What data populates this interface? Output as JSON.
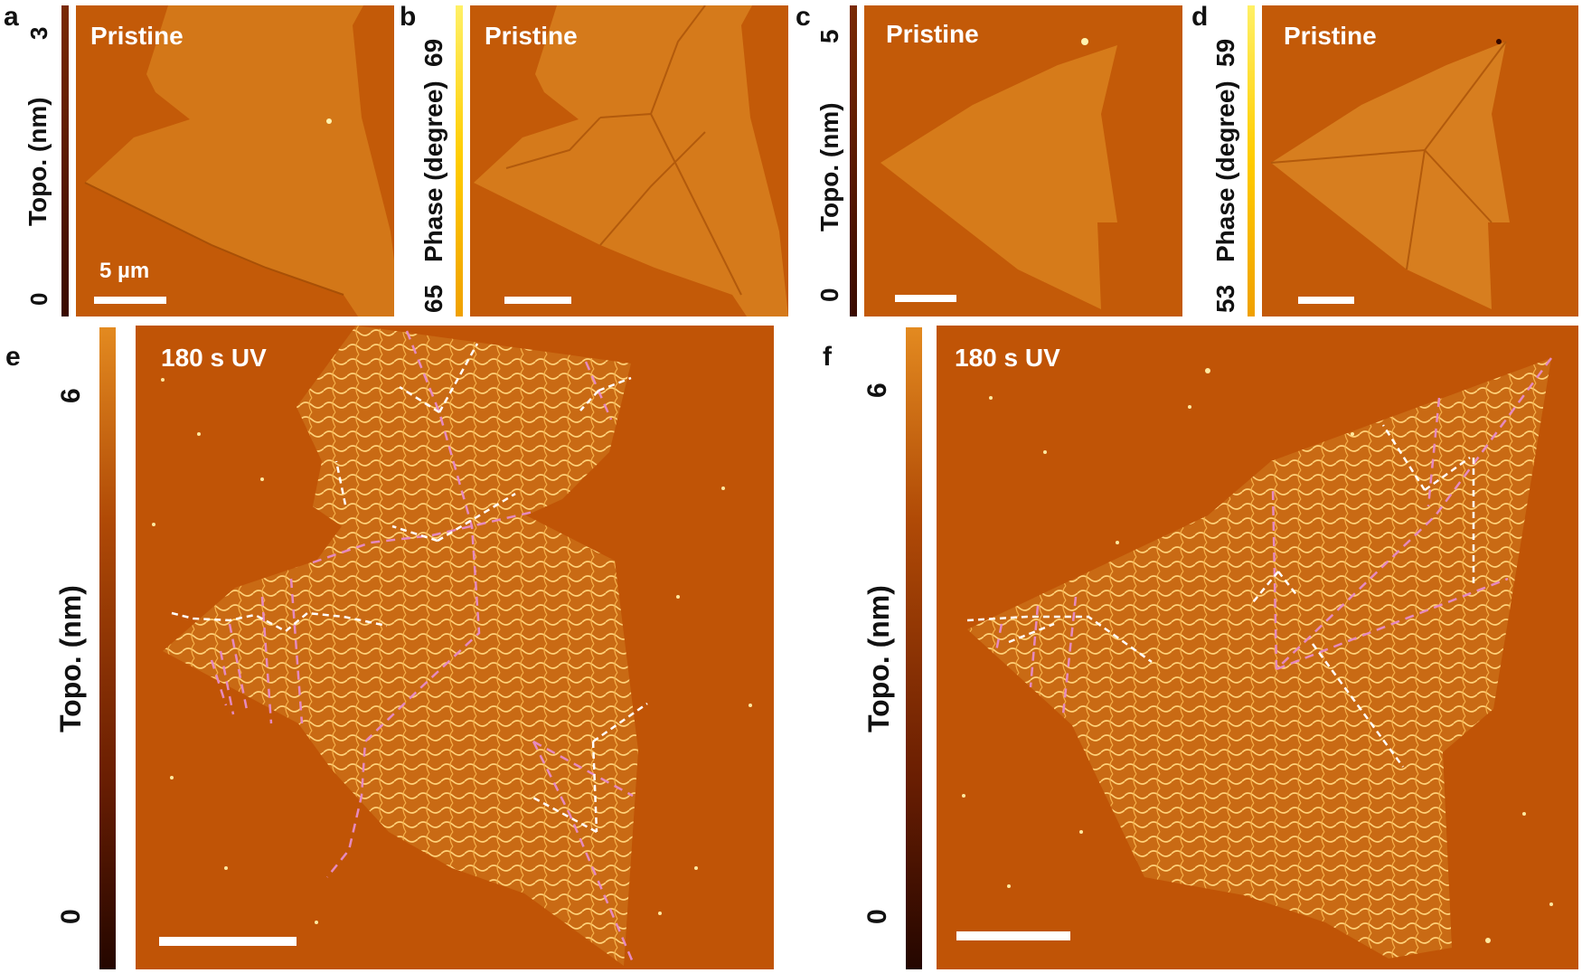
{
  "panels": {
    "a": {
      "letter": "a",
      "title": "Pristine",
      "axis": "Topo. (nm)",
      "tick_top": "3",
      "tick_bottom": "0",
      "scalebar": "5 µm"
    },
    "b": {
      "letter": "b",
      "title": "Pristine",
      "axis": "Phase (degree)",
      "tick_top": "69",
      "tick_bottom": "65"
    },
    "c": {
      "letter": "c",
      "title": "Pristine",
      "axis": "Topo. (nm)",
      "tick_top": "5",
      "tick_bottom": "0"
    },
    "d": {
      "letter": "d",
      "title": "Pristine",
      "axis": "Phase (degree)",
      "tick_top": "59",
      "tick_bottom": "53"
    },
    "e": {
      "letter": "e",
      "title": "180 s UV",
      "axis": "Topo. (nm)",
      "tick_top": "6",
      "tick_bottom": "0"
    },
    "f": {
      "letter": "f",
      "title": "180 s UV",
      "axis": "Topo. (nm)",
      "tick_top": "6",
      "tick_bottom": "0"
    }
  },
  "colors": {
    "substrate": "#c55c08",
    "flake": "#d9801f",
    "flake_uv": "#d8842a",
    "dashed_line": "#e68ac0",
    "arrow": "#ffffff",
    "topo_colorbar": [
      "#ffd24a",
      "#e08a1a",
      "#b04a06",
      "#6a1e02",
      "#240600"
    ],
    "phase_colorbar": [
      "#fff066",
      "#ffcc00",
      "#f0a000"
    ]
  }
}
